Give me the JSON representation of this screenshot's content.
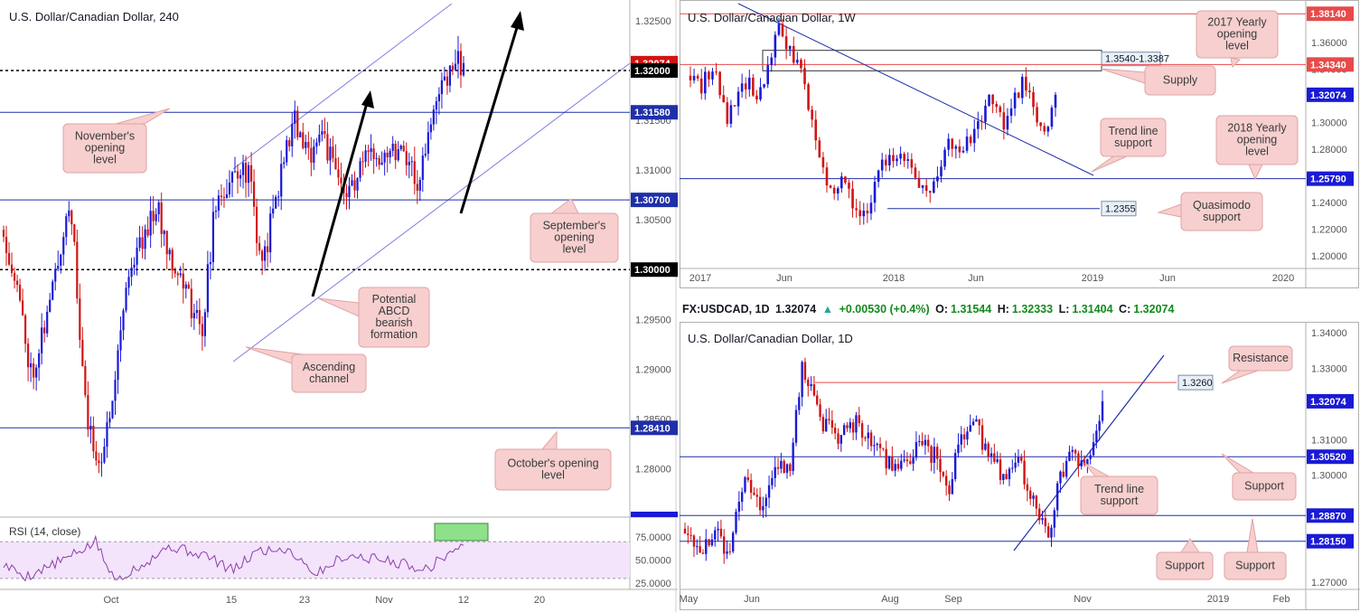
{
  "colors": {
    "bull": "#1a1ad6",
    "bear": "#d01414",
    "blueLine": "#1f2fa8",
    "redLine": "#e84a4a",
    "callout": "#f7cfcf",
    "calloutStroke": "#e0a3a3",
    "rsiFill": "#f3e3fb",
    "rsiLine": "#8b3fa8",
    "green": "#8ee08b"
  },
  "chart_data": [
    {
      "type": "candlestick",
      "title": "U.S. Dollar/Canadian Dollar, 240",
      "x_ticks": [
        "Oct",
        "15",
        "23",
        "Nov",
        "12",
        "20"
      ],
      "y_ticks": [
        "1.32500",
        "1.31500",
        "1.31000",
        "1.30500",
        "1.29500",
        "1.29000",
        "1.28500",
        "1.28000"
      ],
      "ylim": [
        1.2755,
        1.3269
      ],
      "levels": [
        {
          "label": "1.32074",
          "value": 1.32074,
          "style": "price",
          "color": "#d01414"
        },
        {
          "label": "1.32000",
          "value": 1.32,
          "style": "dashed",
          "color": "#000000"
        },
        {
          "label": "1.31580",
          "value": 1.3158,
          "style": "solid",
          "color": "#1f2fa8"
        },
        {
          "label": "1.30700",
          "value": 1.307,
          "style": "solid",
          "color": "#1f2fa8"
        },
        {
          "label": "1.30000",
          "value": 1.3,
          "style": "dashed",
          "color": "#000000"
        },
        {
          "label": "1.28410",
          "value": 1.2841,
          "style": "solid",
          "color": "#1f2fa8"
        }
      ],
      "annotations": [
        {
          "text": [
            "November's",
            "opening",
            "level"
          ]
        },
        {
          "text": [
            "September's",
            "opening",
            "level"
          ]
        },
        {
          "text": [
            "Potential",
            "ABCD",
            "bearish",
            "formation"
          ]
        },
        {
          "text": [
            "Ascending",
            "channel"
          ]
        },
        {
          "text": [
            "October's opening",
            "level"
          ]
        }
      ],
      "rsi": {
        "label": "RSI (14, close)",
        "y_ticks": [
          "75.0000",
          "50.0000",
          "25.0000"
        ],
        "overbought": 70,
        "oversold": 30,
        "last": 66
      }
    },
    {
      "type": "candlestick",
      "title": "U.S. Dollar/Canadian Dollar, 1W",
      "x_ticks": [
        "2017",
        "Jun",
        "2018",
        "Jun",
        "2019",
        "Jun",
        "2020"
      ],
      "y_ticks": [
        "1.36000",
        "1.34000",
        "1.30000",
        "1.28000",
        "1.24000",
        "1.22000",
        "1.20000"
      ],
      "ylim": [
        1.192,
        1.389
      ],
      "levels": [
        {
          "label": "1.38140",
          "value": 1.3814,
          "style": "price",
          "color": "#e84a4a"
        },
        {
          "label": "1.34340",
          "value": 1.3434,
          "style": "price",
          "color": "#e84a4a"
        },
        {
          "label": "1.32074",
          "value": 1.32074,
          "style": "price",
          "color": "#1a1ad6"
        },
        {
          "label": "1.25790",
          "value": 1.2579,
          "style": "price",
          "color": "#1a1ad6"
        }
      ],
      "zone_label": "1.3540-1.3387",
      "qm_label": "1.2355",
      "annotations": [
        {
          "text": [
            "2017 Yearly",
            "opening",
            "level"
          ]
        },
        {
          "text": [
            "Supply"
          ]
        },
        {
          "text": [
            "Trend line",
            "support"
          ]
        },
        {
          "text": [
            "2018 Yearly",
            "opening",
            "level"
          ]
        },
        {
          "text": [
            "Quasimodo",
            "support"
          ]
        }
      ]
    },
    {
      "type": "candlestick",
      "title": "U.S. Dollar/Canadian Dollar, 1D",
      "x_ticks": [
        "May",
        "Jun",
        "Aug",
        "Sep",
        "Nov",
        "2019",
        "Feb"
      ],
      "y_ticks": [
        "1.34000",
        "1.33000",
        "1.31000",
        "1.30000",
        "1.27000"
      ],
      "ylim": [
        1.2685,
        1.3415
      ],
      "levels": [
        {
          "label": "1.32074",
          "value": 1.32074,
          "style": "price",
          "color": "#1a1ad6"
        },
        {
          "label": "1.30520",
          "value": 1.3052,
          "style": "price",
          "color": "#1a1ad6"
        },
        {
          "label": "1.28870",
          "value": 1.2887,
          "style": "price",
          "color": "#1a1ad6"
        },
        {
          "label": "1.28150",
          "value": 1.2815,
          "style": "price",
          "color": "#1a1ad6"
        }
      ],
      "resistance_label": "1.3260",
      "annotations": [
        {
          "text": [
            "Resistance"
          ]
        },
        {
          "text": [
            "Trend line",
            "support"
          ]
        },
        {
          "text": [
            "Support"
          ]
        },
        {
          "text": [
            "Support"
          ]
        },
        {
          "text": [
            "Support"
          ]
        }
      ]
    }
  ],
  "header": {
    "symbol": "FX:USDCAD, 1D",
    "last": "1.32074",
    "change": "+0.00530 (+0.4%)",
    "o_label": "O:",
    "o": "1.31544",
    "h_label": "H:",
    "h": "1.32333",
    "l_label": "L:",
    "l": "1.31404",
    "c_label": "C:",
    "c": "1.32074"
  }
}
